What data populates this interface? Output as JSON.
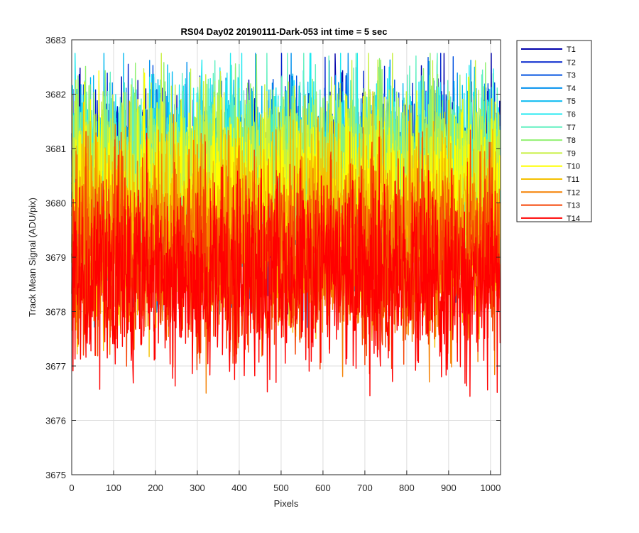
{
  "chart_data": {
    "type": "line",
    "title": "RS04 Day02 20190111-Dark-053 int time = 5 sec",
    "xlabel": "Pixels",
    "ylabel": "Track Mean Signal (ADU/pix)",
    "xlim": [
      0,
      1024
    ],
    "ylim": [
      3675,
      3683
    ],
    "xticks": [
      0,
      100,
      200,
      300,
      400,
      500,
      600,
      700,
      800,
      900,
      1000
    ],
    "yticks": [
      3675,
      3676,
      3677,
      3678,
      3679,
      3680,
      3681,
      3682,
      3683
    ],
    "grid": true,
    "legend_position": "outside-top-right",
    "n_points_per_series": 1024,
    "series": [
      {
        "name": "T1",
        "color": "#0000aa",
        "mean": 3680.4,
        "spread": 0.9
      },
      {
        "name": "T2",
        "color": "#0022cc",
        "mean": 3680.2,
        "spread": 0.9
      },
      {
        "name": "T3",
        "color": "#0050e0",
        "mean": 3680.2,
        "spread": 0.9
      },
      {
        "name": "T4",
        "color": "#0090ee",
        "mean": 3680.3,
        "spread": 0.9
      },
      {
        "name": "T5",
        "color": "#00b8f0",
        "mean": 3680.4,
        "spread": 0.9
      },
      {
        "name": "T6",
        "color": "#1ee8f0",
        "mean": 3680.5,
        "spread": 0.9
      },
      {
        "name": "T7",
        "color": "#60f0c0",
        "mean": 3680.6,
        "spread": 0.9
      },
      {
        "name": "T8",
        "color": "#90f070",
        "mean": 3680.6,
        "spread": 0.9
      },
      {
        "name": "T9",
        "color": "#c8f040",
        "mean": 3680.4,
        "spread": 0.9
      },
      {
        "name": "T10",
        "color": "#ffff00",
        "mean": 3680.0,
        "spread": 0.9
      },
      {
        "name": "T11",
        "color": "#f5c000",
        "mean": 3679.6,
        "spread": 0.9
      },
      {
        "name": "T12",
        "color": "#f58000",
        "mean": 3679.2,
        "spread": 0.9
      },
      {
        "name": "T13",
        "color": "#f54000",
        "mean": 3678.9,
        "spread": 0.9
      },
      {
        "name": "T14",
        "color": "#ff0000",
        "mean": 3678.6,
        "spread": 0.85
      }
    ]
  }
}
